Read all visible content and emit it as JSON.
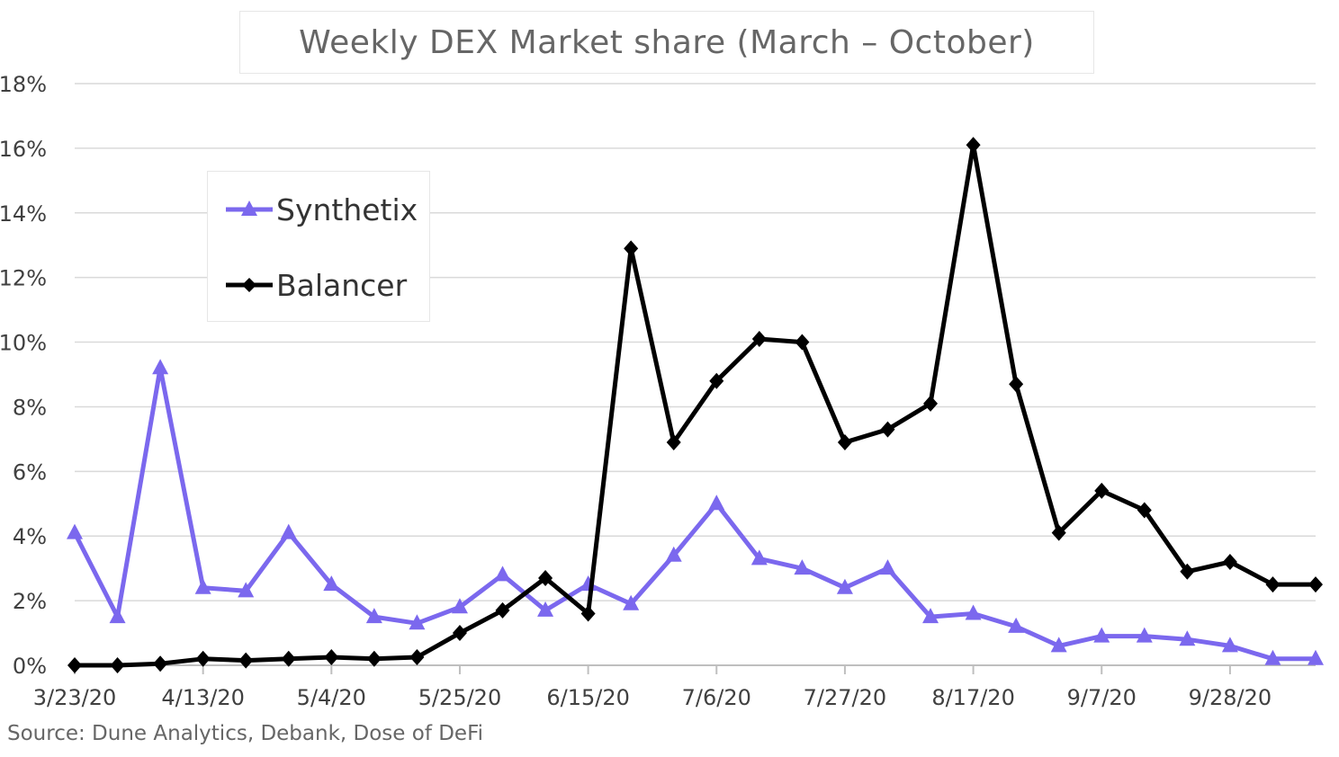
{
  "chart_data": {
    "type": "line",
    "title": "Weekly DEX Market share (March – October)",
    "source": "Source: Dune Analytics, Debank, Dose of DeFi",
    "x_tick_labels": [
      "3/23/20",
      "4/13/20",
      "5/4/20",
      "5/25/20",
      "6/15/20",
      "7/6/20",
      "7/27/20",
      "8/17/20",
      "9/7/20",
      "9/28/20"
    ],
    "x": [
      "3/23/20",
      "3/30/20",
      "4/6/20",
      "4/13/20",
      "4/20/20",
      "4/27/20",
      "5/4/20",
      "5/11/20",
      "5/18/20",
      "5/25/20",
      "6/1/20",
      "6/8/20",
      "6/15/20",
      "6/22/20",
      "6/29/20",
      "7/6/20",
      "7/13/20",
      "7/20/20",
      "7/27/20",
      "8/3/20",
      "8/10/20",
      "8/17/20",
      "8/24/20",
      "8/31/20",
      "9/7/20",
      "9/14/20",
      "9/21/20",
      "9/28/20",
      "10/5/20",
      "10/12/20"
    ],
    "ylim": [
      0,
      18
    ],
    "y_tick_labels": [
      "0%",
      "2%",
      "4%",
      "6%",
      "8%",
      "10%",
      "12%",
      "14%",
      "16%",
      "18%"
    ],
    "y_ticks": [
      0,
      2,
      4,
      6,
      8,
      10,
      12,
      14,
      16,
      18
    ],
    "grid": true,
    "legend_position": "upper-left",
    "series": [
      {
        "name": "Synthetix",
        "color": "#7b68ee",
        "marker": "triangle",
        "values": [
          4.1,
          1.5,
          9.2,
          2.4,
          2.3,
          4.1,
          2.5,
          1.5,
          1.3,
          1.8,
          2.8,
          1.7,
          2.5,
          1.9,
          3.4,
          5.0,
          3.3,
          3.0,
          2.4,
          3.0,
          1.5,
          1.6,
          1.2,
          0.6,
          0.9,
          0.9,
          0.8,
          0.6,
          0.2,
          0.2
        ]
      },
      {
        "name": "Balancer",
        "color": "#000000",
        "marker": "diamond",
        "values": [
          0.0,
          0.0,
          0.05,
          0.2,
          0.15,
          0.2,
          0.25,
          0.2,
          0.25,
          1.0,
          1.7,
          2.7,
          1.6,
          12.9,
          6.9,
          8.8,
          10.1,
          10.0,
          6.9,
          7.3,
          8.1,
          16.1,
          8.7,
          4.1,
          5.4,
          4.8,
          2.9,
          3.2,
          2.5,
          2.5
        ]
      }
    ]
  }
}
